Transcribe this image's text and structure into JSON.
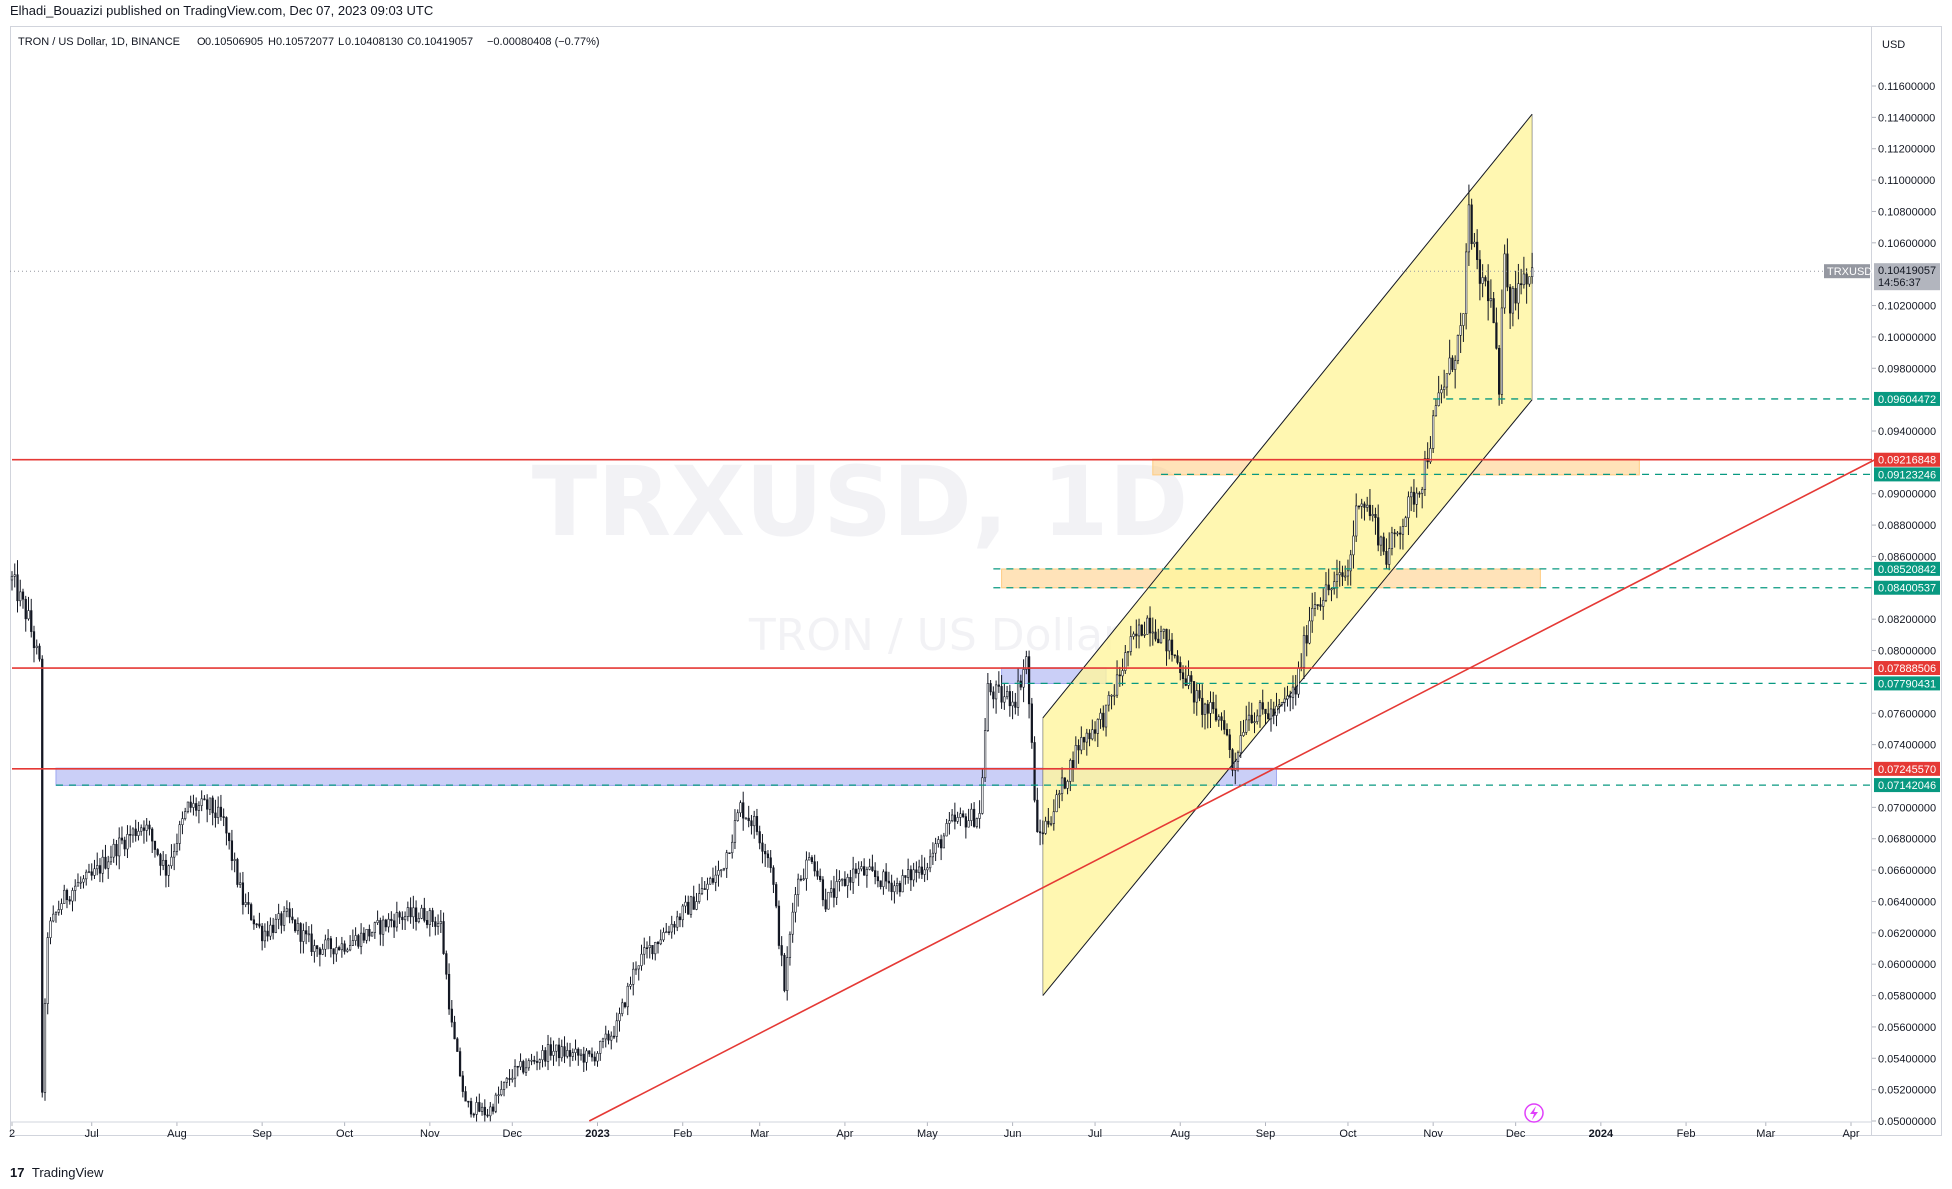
{
  "header": {
    "published": "Elhadi_Bouazizi published on TradingView.com, Dec 07, 2023 09:03 UTC"
  },
  "legend": {
    "symbol": "TRON / US Dollar, 1D, BINANCE",
    "o_label": "O",
    "o": "0.10506905",
    "h_label": "H",
    "h": "0.10572077",
    "l_label": "L",
    "l": "0.10408130",
    "c_label": "C",
    "c": "0.10419057",
    "change": "−0.00080408 (−0.77%)"
  },
  "watermark": {
    "line1": "TRXUSD, 1D",
    "line2": "TRON / US Dollar"
  },
  "currency": "USD",
  "footer": {
    "logo": "17",
    "brand": "TradingView"
  },
  "colors": {
    "up": "#26a69a",
    "candle": "#131722",
    "channel_fill": "#fff59d",
    "support_line": "#e53935",
    "dashed_level": "#089981",
    "zone_blue": "#9fa8f0",
    "zone_orange": "#ffcc80"
  },
  "chart_data": {
    "type": "candlestick",
    "symbol": "TRXUSD",
    "interval": "1D",
    "exchange": "BINANCE",
    "ylim": [
      0.05,
      0.118
    ],
    "y_ticks": [
      "0.11600000",
      "0.11400000",
      "0.11200000",
      "0.11000000",
      "0.10800000",
      "0.10600000",
      "0.10400000",
      "0.10200000",
      "0.10000000",
      "0.09800000",
      "0.09600000",
      "0.09400000",
      "0.09200000",
      "0.09000000",
      "0.08800000",
      "0.08600000",
      "0.08400000",
      "0.08200000",
      "0.08000000",
      "0.07800000",
      "0.07600000",
      "0.07400000",
      "0.07200000",
      "0.07000000",
      "0.06800000",
      "0.06600000",
      "0.06400000",
      "0.06200000",
      "0.06000000",
      "0.05800000",
      "0.05600000",
      "0.05400000",
      "0.05200000",
      "0.05000000"
    ],
    "x_ticks": [
      {
        "label": "2",
        "date": "2022-06-02"
      },
      {
        "label": "Jul",
        "date": "2022-07-01"
      },
      {
        "label": "Aug",
        "date": "2022-08-01"
      },
      {
        "label": "Sep",
        "date": "2022-09-01"
      },
      {
        "label": "Oct",
        "date": "2022-10-01"
      },
      {
        "label": "Nov",
        "date": "2022-11-01"
      },
      {
        "label": "Dec",
        "date": "2022-12-01"
      },
      {
        "label": "2023",
        "date": "2023-01-01"
      },
      {
        "label": "Feb",
        "date": "2023-02-01"
      },
      {
        "label": "Mar",
        "date": "2023-03-01"
      },
      {
        "label": "Apr",
        "date": "2023-04-01"
      },
      {
        "label": "May",
        "date": "2023-05-01"
      },
      {
        "label": "Jun",
        "date": "2023-06-01"
      },
      {
        "label": "Jul",
        "date": "2023-07-01"
      },
      {
        "label": "Aug",
        "date": "2023-08-01"
      },
      {
        "label": "Sep",
        "date": "2023-09-01"
      },
      {
        "label": "Oct",
        "date": "2023-10-01"
      },
      {
        "label": "Nov",
        "date": "2023-11-01"
      },
      {
        "label": "Dec",
        "date": "2023-12-01"
      },
      {
        "label": "2024",
        "date": "2024-01-01"
      },
      {
        "label": "Feb",
        "date": "2024-02-01"
      },
      {
        "label": "Mar",
        "date": "2024-03-01"
      },
      {
        "label": "Apr",
        "date": "2024-04-01"
      }
    ],
    "price_path": [
      [
        "2022-06-02",
        0.0845
      ],
      [
        "2022-06-08",
        0.082
      ],
      [
        "2022-06-12",
        0.079
      ],
      [
        "2022-06-13",
        0.052
      ],
      [
        "2022-06-15",
        0.062
      ],
      [
        "2022-06-20",
        0.064
      ],
      [
        "2022-06-25",
        0.065
      ],
      [
        "2022-07-01",
        0.0655
      ],
      [
        "2022-07-10",
        0.0675
      ],
      [
        "2022-07-20",
        0.069
      ],
      [
        "2022-07-28",
        0.066
      ],
      [
        "2022-08-05",
        0.07
      ],
      [
        "2022-08-13",
        0.07
      ],
      [
        "2022-08-18",
        0.069
      ],
      [
        "2022-08-25",
        0.064
      ],
      [
        "2022-09-01",
        0.062
      ],
      [
        "2022-09-10",
        0.063
      ],
      [
        "2022-09-20",
        0.061
      ],
      [
        "2022-09-30",
        0.0612
      ],
      [
        "2022-10-10",
        0.062
      ],
      [
        "2022-10-20",
        0.063
      ],
      [
        "2022-10-30",
        0.0632
      ],
      [
        "2022-11-05",
        0.0625
      ],
      [
        "2022-11-09",
        0.056
      ],
      [
        "2022-11-14",
        0.051
      ],
      [
        "2022-11-22",
        0.0505
      ],
      [
        "2022-12-01",
        0.053
      ],
      [
        "2022-12-15",
        0.0545
      ],
      [
        "2022-12-30",
        0.054
      ],
      [
        "2023-01-08",
        0.056
      ],
      [
        "2023-01-15",
        0.06
      ],
      [
        "2023-01-25",
        0.062
      ],
      [
        "2023-02-05",
        0.064
      ],
      [
        "2023-02-15",
        0.066
      ],
      [
        "2023-02-22",
        0.07
      ],
      [
        "2023-02-27",
        0.069
      ],
      [
        "2023-03-05",
        0.0665
      ],
      [
        "2023-03-10",
        0.0585
      ],
      [
        "2023-03-14",
        0.065
      ],
      [
        "2023-03-20",
        0.067
      ],
      [
        "2023-03-25",
        0.064
      ],
      [
        "2023-04-05",
        0.066
      ],
      [
        "2023-04-20",
        0.065
      ],
      [
        "2023-05-01",
        0.0665
      ],
      [
        "2023-05-10",
        0.069
      ],
      [
        "2023-05-20",
        0.0695
      ],
      [
        "2023-05-23",
        0.0775
      ],
      [
        "2023-05-28",
        0.077
      ],
      [
        "2023-06-02",
        0.077
      ],
      [
        "2023-06-06",
        0.0795
      ],
      [
        "2023-06-10",
        0.068
      ],
      [
        "2023-06-15",
        0.0695
      ],
      [
        "2023-06-25",
        0.074
      ],
      [
        "2023-07-05",
        0.076
      ],
      [
        "2023-07-13",
        0.08
      ],
      [
        "2023-07-20",
        0.082
      ],
      [
        "2023-07-25",
        0.081
      ],
      [
        "2023-08-01",
        0.079
      ],
      [
        "2023-08-08",
        0.0765
      ],
      [
        "2023-08-17",
        0.0755
      ],
      [
        "2023-08-20",
        0.0725
      ],
      [
        "2023-08-25",
        0.076
      ],
      [
        "2023-09-05",
        0.076
      ],
      [
        "2023-09-12",
        0.0775
      ],
      [
        "2023-09-18",
        0.083
      ],
      [
        "2023-09-25",
        0.084
      ],
      [
        "2023-10-01",
        0.085
      ],
      [
        "2023-10-05",
        0.09
      ],
      [
        "2023-10-10",
        0.0885
      ],
      [
        "2023-10-15",
        0.086
      ],
      [
        "2023-10-20",
        0.088
      ],
      [
        "2023-10-28",
        0.091
      ],
      [
        "2023-11-03",
        0.096
      ],
      [
        "2023-11-08",
        0.0985
      ],
      [
        "2023-11-12",
        0.101
      ],
      [
        "2023-11-14",
        0.108
      ],
      [
        "2023-11-17",
        0.104
      ],
      [
        "2023-11-21",
        0.103
      ],
      [
        "2023-11-23",
        0.101
      ],
      [
        "2023-11-25",
        0.096
      ],
      [
        "2023-11-27",
        0.106
      ],
      [
        "2023-11-29",
        0.102
      ],
      [
        "2023-12-03",
        0.104
      ],
      [
        "2023-12-07",
        0.1042
      ]
    ],
    "last_price": {
      "symbol": "TRXUSD",
      "price": "0.10419057",
      "countdown": "14:56:37"
    },
    "horizontal_levels": [
      {
        "price": 0.09604472,
        "label": "0.09604472",
        "style": "dashed",
        "color": "#089981",
        "start": "2023-11-01"
      },
      {
        "price": 0.09216848,
        "label": "0.09216848",
        "style": "solid",
        "color": "#e53935",
        "start": "2022-06-02"
      },
      {
        "price": 0.09123246,
        "label": "0.09123246",
        "style": "dashed",
        "color": "#089981",
        "start": "2023-07-25"
      },
      {
        "price": 0.08520842,
        "label": "0.08520842",
        "style": "dashed",
        "color": "#089981",
        "start": "2023-05-25"
      },
      {
        "price": 0.08400537,
        "label": "0.08400537",
        "style": "dashed",
        "color": "#089981",
        "start": "2023-05-25"
      },
      {
        "price": 0.07888506,
        "label": "0.07888506",
        "style": "solid",
        "color": "#e53935",
        "start": "2022-06-02"
      },
      {
        "price": 0.07790431,
        "label": "0.07790431",
        "style": "dashed",
        "color": "#089981",
        "start": "2023-05-28"
      },
      {
        "price": 0.0724557,
        "label": "0.07245570",
        "style": "solid",
        "color": "#e53935",
        "start": "2022-06-02"
      },
      {
        "price": 0.07142046,
        "label": "0.07142046",
        "style": "dashed",
        "color": "#089981",
        "start": "2022-06-18"
      }
    ],
    "zones": [
      {
        "from": "2022-06-18",
        "to": "2023-09-05",
        "low": 0.0714,
        "high": 0.0725,
        "color": "#9fa8f0"
      },
      {
        "from": "2023-05-28",
        "to": "2023-07-05",
        "low": 0.0779,
        "high": 0.0789,
        "color": "#9fa8f0"
      },
      {
        "from": "2023-05-28",
        "to": "2023-12-10",
        "low": 0.084,
        "high": 0.0852,
        "color": "#ffcc80"
      },
      {
        "from": "2023-07-22",
        "to": "2024-01-15",
        "low": 0.0912,
        "high": 0.0922,
        "color": "#ffcc80"
      }
    ],
    "channel": {
      "upper": [
        [
          "2023-06-12",
          0.0757
        ],
        [
          "2023-12-07",
          0.1142
        ]
      ],
      "lower": [
        [
          "2023-06-12",
          0.058
        ],
        [
          "2023-12-07",
          0.096
        ]
      ],
      "color": "#fff59d"
    },
    "trendline": {
      "points": [
        [
          "2022-12-29",
          0.05
        ],
        [
          "2024-04-10",
          0.0922
        ]
      ],
      "color": "#e53935"
    }
  }
}
